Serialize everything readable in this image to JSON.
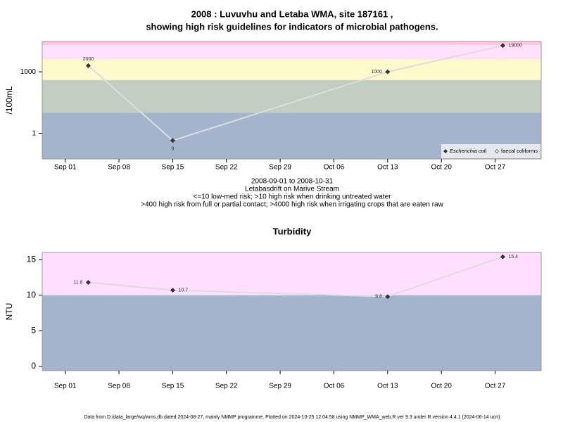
{
  "chart_data": [
    {
      "type": "line",
      "title": "2008 : Luvuvhu and Letaba WMA, site 187161 ,",
      "subtitle": "showing high risk guidelines for indicators of microbial pathogens.",
      "ylabel": "/100mL",
      "xlabel": [
        "2008-09-01 to 2008-10-31",
        "Letabasdrift on Marive Stream",
        "<=10 low-med risk; >10 high risk when drinking untreated water",
        ">400 high risk from full or partial contact; >4000 high risk when irrigating crops that are eaten raw"
      ],
      "log": true,
      "x": [
        "2008-09-04",
        "2008-09-15",
        "2008-10-13",
        "2008-10-28"
      ],
      "series": [
        {
          "name": "Escherichia coli",
          "color": "#dddddd",
          "values": [
            2000,
            0.45,
            1000,
            19000
          ],
          "value_labels": [
            "2000",
            "0",
            "1000",
            "19000"
          ]
        },
        {
          "name": "faecal coliforms",
          "color": "#dddddd",
          "values": [
            null,
            null,
            null,
            null
          ]
        }
      ],
      "xlim": [
        "2008-08-29",
        "2008-11-02"
      ],
      "xticks": [
        {
          "value": "2008-09-01",
          "label": "Sep 01"
        },
        {
          "value": "2008-09-08",
          "label": "Sep 08"
        },
        {
          "value": "2008-09-15",
          "label": "Sep 15"
        },
        {
          "value": "2008-09-22",
          "label": "Sep 22"
        },
        {
          "value": "2008-09-29",
          "label": "Sep 29"
        },
        {
          "value": "2008-10-06",
          "label": "Oct 06"
        },
        {
          "value": "2008-10-13",
          "label": "Oct 13"
        },
        {
          "value": "2008-10-20",
          "label": "Oct 20"
        },
        {
          "value": "2008-10-27",
          "label": "Oct 27"
        }
      ],
      "ylim": [
        0.057,
        30000
      ],
      "yticks": [
        1,
        1000
      ],
      "bands": [
        {
          "to": 10,
          "color": "#a3b4cc"
        },
        {
          "to": 400,
          "color": "#c3cec2"
        },
        {
          "to": 4000,
          "color": "#fff9cc"
        },
        {
          "to": 20000,
          "color": "#ffe0ff"
        },
        {
          "to": 30000,
          "color": "#ffc8d8"
        }
      ],
      "legend": "bottom-right"
    },
    {
      "type": "line",
      "title": "Turbidity",
      "ylabel": "NTU",
      "x": [
        "2008-09-04",
        "2008-09-15",
        "2008-10-13",
        "2008-10-28"
      ],
      "series": [
        {
          "name": "Turbidity",
          "color": "#dddddd",
          "values": [
            11.8,
            10.7,
            9.8,
            15.4
          ]
        }
      ],
      "xlim": [
        "2008-08-29",
        "2008-11-02"
      ],
      "xticks": [
        {
          "value": "2008-09-01",
          "label": "Sep 01"
        },
        {
          "value": "2008-09-08",
          "label": "Sep 08"
        },
        {
          "value": "2008-09-15",
          "label": "Sep 15"
        },
        {
          "value": "2008-09-22",
          "label": "Sep 22"
        },
        {
          "value": "2008-09-29",
          "label": "Sep 29"
        },
        {
          "value": "2008-10-06",
          "label": "Oct 06"
        },
        {
          "value": "2008-10-13",
          "label": "Oct 13"
        },
        {
          "value": "2008-10-20",
          "label": "Oct 20"
        },
        {
          "value": "2008-10-27",
          "label": "Oct 27"
        }
      ],
      "ylim": [
        -0.6,
        16
      ],
      "yticks": [
        0,
        5,
        10,
        15
      ],
      "bands": [
        {
          "to": 10,
          "color": "#a3b4cc"
        },
        {
          "to": 16,
          "color": "#ffdfff"
        }
      ]
    }
  ],
  "footer": "Data from D:/data_large/wq/wms.db dated 2024-08-27, mainly NMMP programme. Plotted on 2024-10-25 12:04:58 using NMMP_WMA_web.R ver 9.3 under R version 4.4.1 (2024-06-14 ucrt)"
}
